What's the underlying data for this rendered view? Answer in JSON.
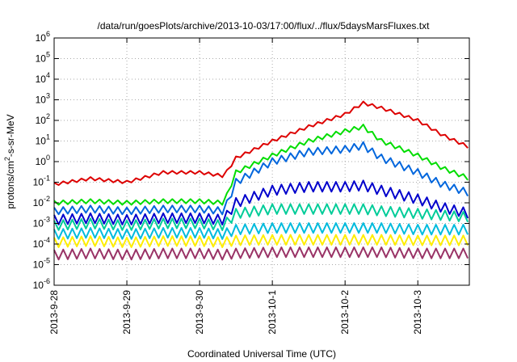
{
  "chart_data": {
    "type": "line",
    "title": "/data/run/goesPlots/archive/2013-10-03/17:00/flux/../flux/5daysMarsFluxes.txt",
    "xlabel": "Coordinated Universal Time (UTC)",
    "ylabel": {
      "prefix": "protons/cm",
      "sup": "2",
      "suffix": "-s-sr-MeV"
    },
    "yscale": "log",
    "ylim": [
      1e-06,
      1000000.0
    ],
    "y_ticks": [
      {
        "value": 1e-06,
        "base": "10",
        "exp": "-6"
      },
      {
        "value": 1e-05,
        "base": "10",
        "exp": "-5"
      },
      {
        "value": 0.0001,
        "base": "10",
        "exp": "-4"
      },
      {
        "value": 0.001,
        "base": "10",
        "exp": "-3"
      },
      {
        "value": 0.01,
        "base": "10",
        "exp": "-2"
      },
      {
        "value": 0.1,
        "base": "10",
        "exp": "-1"
      },
      {
        "value": 1,
        "base": "10",
        "exp": "0"
      },
      {
        "value": 10,
        "base": "10",
        "exp": "1"
      },
      {
        "value": 100,
        "base": "10",
        "exp": "2"
      },
      {
        "value": 1000,
        "base": "10",
        "exp": "3"
      },
      {
        "value": 10000,
        "base": "10",
        "exp": "4"
      },
      {
        "value": 100000,
        "base": "10",
        "exp": "5"
      },
      {
        "value": 1000000,
        "base": "10",
        "exp": "6"
      }
    ],
    "x_start": "2013-09-28",
    "x_end": "2013-10-03 17:00",
    "x_ticks": [
      {
        "date": "2013-09-28",
        "label": "2013-9-28"
      },
      {
        "date": "2013-09-29",
        "label": "2013-9-29"
      },
      {
        "date": "2013-09-30",
        "label": "2013-9-30"
      },
      {
        "date": "2013-10-01",
        "label": "2013-10-1"
      },
      {
        "date": "2013-10-02",
        "label": "2013-10-2"
      },
      {
        "date": "2013-10-03",
        "label": "2013-10-3"
      }
    ],
    "grid": true,
    "legend": "none",
    "series": [
      {
        "color": "#dd0000",
        "x": [
          "2013-09-28 00:00",
          "2013-09-28 12:00",
          "2013-09-29 00:00",
          "2013-09-29 12:00",
          "2013-09-30 00:00",
          "2013-09-30 08:00",
          "2013-09-30 12:00",
          "2013-10-01 00:00",
          "2013-10-01 12:00",
          "2013-10-02 00:00",
          "2013-10-02 06:00",
          "2013-10-02 12:00",
          "2013-10-03 00:00",
          "2013-10-03 08:00",
          "2013-10-03 17:00"
        ],
        "y": [
          0.08,
          0.15,
          0.1,
          0.3,
          0.3,
          0.2,
          1.5,
          10,
          50,
          200,
          700,
          400,
          100,
          20,
          5
        ],
        "sawtooth": 1.4
      },
      {
        "color": "#00dd00",
        "x": [
          "2013-09-28 00:00",
          "2013-09-28 12:00",
          "2013-09-29 00:00",
          "2013-09-29 12:00",
          "2013-09-30 00:00",
          "2013-09-30 08:00",
          "2013-09-30 12:00",
          "2013-10-01 00:00",
          "2013-10-01 12:00",
          "2013-10-02 00:00",
          "2013-10-02 06:00",
          "2013-10-02 12:00",
          "2013-10-03 00:00",
          "2013-10-03 08:00",
          "2013-10-03 17:00"
        ],
        "y": [
          0.01,
          0.012,
          0.01,
          0.012,
          0.012,
          0.01,
          0.3,
          2,
          10,
          30,
          50,
          10,
          2,
          0.5,
          0.15
        ],
        "sawtooth": 1.6
      },
      {
        "color": "#0066dd",
        "x": [
          "2013-09-28 00:00",
          "2013-09-28 12:00",
          "2013-09-29 00:00",
          "2013-09-29 12:00",
          "2013-09-30 00:00",
          "2013-09-30 08:00",
          "2013-09-30 12:00",
          "2013-10-01 00:00",
          "2013-10-01 12:00",
          "2013-10-02 00:00",
          "2013-10-02 06:00",
          "2013-10-02 12:00",
          "2013-10-03 00:00",
          "2013-10-03 08:00",
          "2013-10-03 17:00"
        ],
        "y": [
          0.004,
          0.005,
          0.004,
          0.005,
          0.005,
          0.004,
          0.1,
          1,
          3,
          4,
          6,
          1.5,
          0.3,
          0.08,
          0.03
        ],
        "sawtooth": 2.2
      },
      {
        "color": "#0000cc",
        "x": [
          "2013-09-28 00:00",
          "2013-09-28 12:00",
          "2013-09-29 00:00",
          "2013-09-29 12:00",
          "2013-09-30 00:00",
          "2013-09-30 08:00",
          "2013-09-30 12:00",
          "2013-10-01 00:00",
          "2013-10-01 12:00",
          "2013-10-02 00:00",
          "2013-10-02 06:00",
          "2013-10-02 12:00",
          "2013-10-03 00:00",
          "2013-10-03 08:00",
          "2013-10-03 17:00"
        ],
        "y": [
          0.0015,
          0.0018,
          0.0015,
          0.0018,
          0.0018,
          0.0015,
          0.01,
          0.04,
          0.06,
          0.06,
          0.07,
          0.04,
          0.015,
          0.006,
          0.003
        ],
        "sawtooth": 3.0
      },
      {
        "color": "#00cc99",
        "x": [
          "2013-09-28 00:00",
          "2013-09-28 12:00",
          "2013-09-29 00:00",
          "2013-09-29 12:00",
          "2013-09-30 00:00",
          "2013-09-30 08:00",
          "2013-09-30 12:00",
          "2013-10-01 00:00",
          "2013-10-01 12:00",
          "2013-10-02 00:00",
          "2013-10-02 06:00",
          "2013-10-02 12:00",
          "2013-10-03 00:00",
          "2013-10-03 08:00",
          "2013-10-03 17:00"
        ],
        "y": [
          0.0008,
          0.001,
          0.0008,
          0.001,
          0.001,
          0.0008,
          0.003,
          0.005,
          0.005,
          0.005,
          0.005,
          0.004,
          0.003,
          0.0025,
          0.002
        ],
        "sawtooth": 3.0
      },
      {
        "color": "#00bbdd",
        "x": [
          "2013-09-28 00:00",
          "2013-09-28 12:00",
          "2013-09-29 00:00",
          "2013-09-29 12:00",
          "2013-09-30 00:00",
          "2013-09-30 08:00",
          "2013-09-30 12:00",
          "2013-10-01 00:00",
          "2013-10-01 12:00",
          "2013-10-02 00:00",
          "2013-10-02 06:00",
          "2013-10-02 12:00",
          "2013-10-03 00:00",
          "2013-10-03 08:00",
          "2013-10-03 17:00"
        ],
        "y": [
          0.0003,
          0.00035,
          0.0003,
          0.00035,
          0.00035,
          0.0003,
          0.0005,
          0.0006,
          0.0006,
          0.0006,
          0.0006,
          0.0006,
          0.0005,
          0.0005,
          0.0005
        ],
        "sawtooth": 3.0
      },
      {
        "color": "#ffee00",
        "x": [
          "2013-09-28 00:00",
          "2013-09-28 12:00",
          "2013-09-29 00:00",
          "2013-09-29 12:00",
          "2013-09-30 00:00",
          "2013-09-30 08:00",
          "2013-09-30 12:00",
          "2013-10-01 00:00",
          "2013-10-01 12:00",
          "2013-10-02 00:00",
          "2013-10-02 06:00",
          "2013-10-02 12:00",
          "2013-10-03 00:00",
          "2013-10-03 08:00",
          "2013-10-03 17:00"
        ],
        "y": [
          0.00012,
          0.00014,
          0.00012,
          0.00014,
          0.00014,
          0.00012,
          0.00015,
          0.00016,
          0.00016,
          0.00016,
          0.00016,
          0.00016,
          0.00015,
          0.00015,
          0.00015
        ],
        "sawtooth": 3.0
      },
      {
        "color": "#993366",
        "x": [
          "2013-09-28 00:00",
          "2013-09-28 12:00",
          "2013-09-29 00:00",
          "2013-09-29 12:00",
          "2013-09-30 00:00",
          "2013-09-30 08:00",
          "2013-09-30 12:00",
          "2013-10-01 00:00",
          "2013-10-01 12:00",
          "2013-10-02 00:00",
          "2013-10-02 06:00",
          "2013-10-02 12:00",
          "2013-10-03 00:00",
          "2013-10-03 08:00",
          "2013-10-03 17:00"
        ],
        "y": [
          3e-05,
          3.5e-05,
          3e-05,
          3.5e-05,
          3.5e-05,
          3e-05,
          3.5e-05,
          4e-05,
          4e-05,
          4e-05,
          4e-05,
          4e-05,
          3.5e-05,
          3.5e-05,
          3.5e-05
        ],
        "sawtooth": 3.0
      }
    ]
  }
}
